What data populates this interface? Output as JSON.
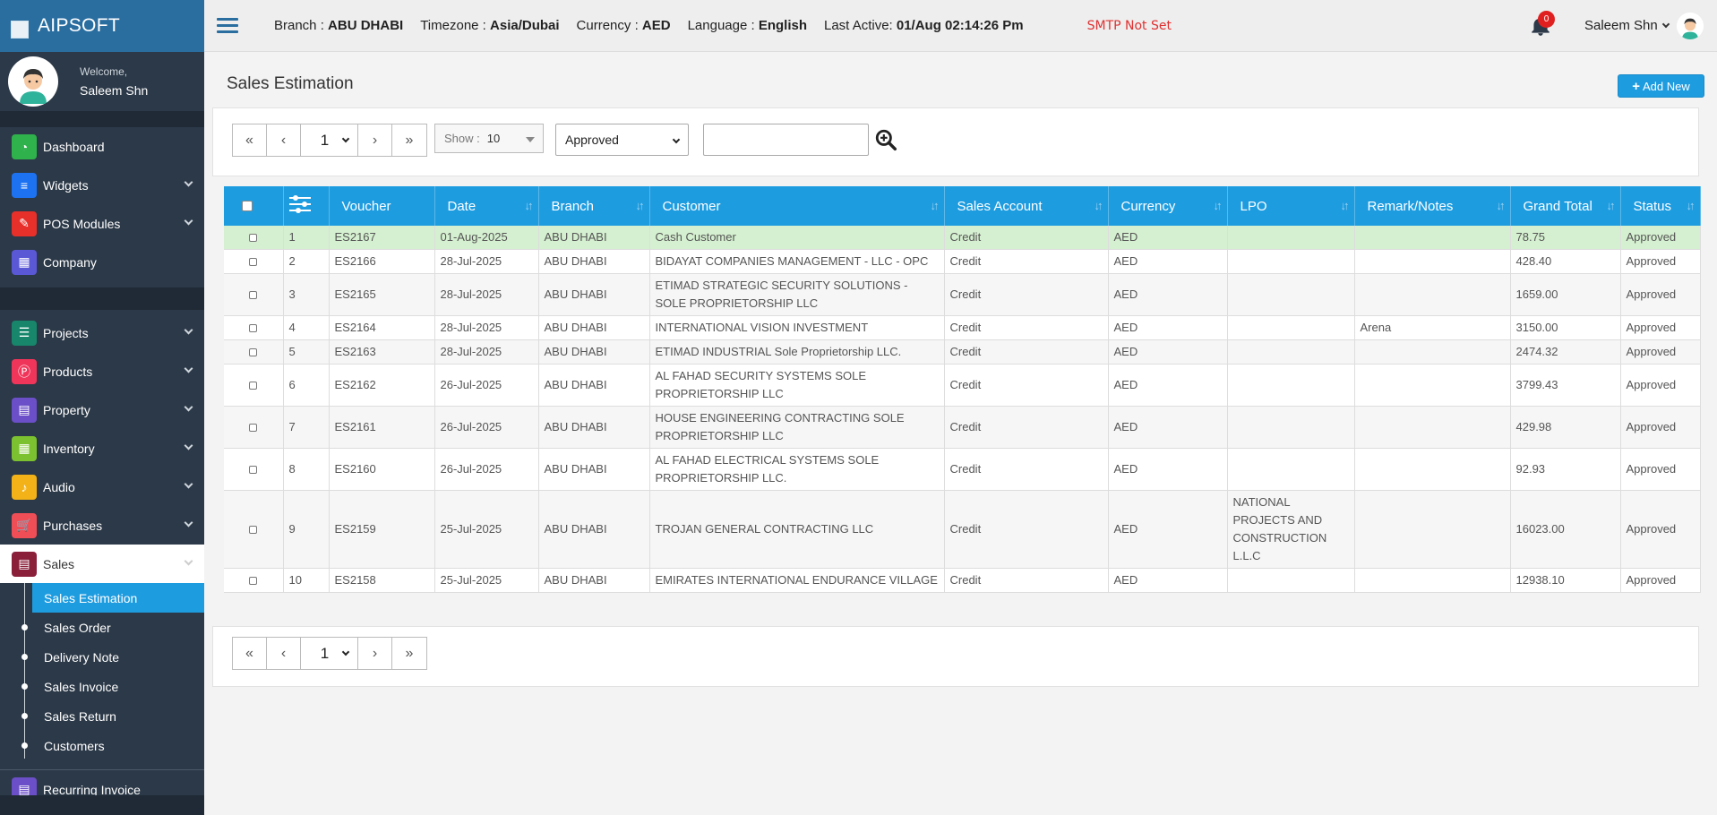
{
  "brand": {
    "name": "AIPSOFT"
  },
  "user": {
    "welcome": "Welcome,",
    "name": "Saleem Shn"
  },
  "sidebar": {
    "items_top": [
      {
        "label": "Dashboard",
        "icon": "dashboard-icon",
        "color": "#2fb14c",
        "glyph": "◔",
        "chevron": false
      },
      {
        "label": "Widgets",
        "icon": "sliders-icon",
        "color": "#1d72f2",
        "glyph": "≡",
        "chevron": true
      },
      {
        "label": "POS Modules",
        "icon": "edit-icon",
        "color": "#e8302a",
        "glyph": "✎",
        "chevron": true
      },
      {
        "label": "Company",
        "icon": "building-icon",
        "color": "#5b58d6",
        "glyph": "▦",
        "chevron": false
      }
    ],
    "items_mid": [
      {
        "label": "Projects",
        "icon": "server-icon",
        "color": "#17866b",
        "glyph": "☰",
        "chevron": true
      },
      {
        "label": "Products",
        "icon": "product-icon",
        "color": "#f0355a",
        "glyph": "Ⓟ",
        "chevron": true
      },
      {
        "label": "Property",
        "icon": "list-icon",
        "color": "#6b4fc8",
        "glyph": "▤",
        "chevron": true
      },
      {
        "label": "Inventory",
        "icon": "grid-icon",
        "color": "#7cc12f",
        "glyph": "▦",
        "chevron": true
      },
      {
        "label": "Audio",
        "icon": "mic-icon",
        "color": "#f3b218",
        "glyph": "♪",
        "chevron": true
      },
      {
        "label": "Purchases",
        "icon": "cart-icon",
        "color": "#f04e57",
        "glyph": "🛒",
        "chevron": true
      },
      {
        "label": "Sales",
        "icon": "sales-icon",
        "color": "#8a1f3a",
        "glyph": "▤",
        "chevron": true,
        "active": true
      }
    ],
    "submenu": [
      {
        "label": "Sales Estimation",
        "active": true
      },
      {
        "label": "Sales Order"
      },
      {
        "label": "Delivery Note"
      },
      {
        "label": "Sales Invoice"
      },
      {
        "label": "Sales Return"
      },
      {
        "label": "Customers"
      }
    ],
    "items_bottom": [
      {
        "label": "Recurring Invoice",
        "icon": "invoice-icon",
        "color": "#6b4fc8",
        "glyph": "▤",
        "chevron": false
      }
    ]
  },
  "topbar": {
    "branch_label": "Branch : ",
    "branch": "ABU DHABI",
    "timezone_label": "Timezone : ",
    "timezone": "Asia/Dubai",
    "currency_label": "Currency : ",
    "currency": "AED",
    "language_label": "Language : ",
    "language": "English",
    "last_active_label": "Last Active: ",
    "last_active": "01/Aug 02:14:26 Pm",
    "smtp": "SMTP Not Set",
    "notifications": "0",
    "user": "Saleem Shn"
  },
  "page": {
    "title": "Sales Estimation",
    "add_new": "Add New",
    "page_number": "1",
    "show_label": "Show :",
    "show_value": "10",
    "status_filter": "Approved",
    "search_placeholder": ""
  },
  "table": {
    "columns": [
      "Voucher",
      "Date",
      "Branch",
      "Customer",
      "Sales Account",
      "Currency",
      "LPO",
      "Remark/Notes",
      "Grand Total",
      "Status"
    ],
    "rows": [
      {
        "no": "1",
        "voucher": "ES2167",
        "date": "01-Aug-2025",
        "branch": "ABU DHABI",
        "customer": "Cash Customer",
        "account": "Credit",
        "currency": "AED",
        "lpo": "",
        "remark": "",
        "total": "78.75",
        "status": "Approved"
      },
      {
        "no": "2",
        "voucher": "ES2166",
        "date": "28-Jul-2025",
        "branch": "ABU DHABI",
        "customer": "BIDAYAT COMPANIES MANAGEMENT - LLC - OPC",
        "account": "Credit",
        "currency": "AED",
        "lpo": "",
        "remark": "",
        "total": "428.40",
        "status": "Approved"
      },
      {
        "no": "3",
        "voucher": "ES2165",
        "date": "28-Jul-2025",
        "branch": "ABU DHABI",
        "customer": "ETIMAD STRATEGIC SECURITY SOLUTIONS - SOLE PROPRIETORSHIP LLC",
        "account": "Credit",
        "currency": "AED",
        "lpo": "",
        "remark": "",
        "total": "1659.00",
        "status": "Approved"
      },
      {
        "no": "4",
        "voucher": "ES2164",
        "date": "28-Jul-2025",
        "branch": "ABU DHABI",
        "customer": "INTERNATIONAL VISION INVESTMENT",
        "account": "Credit",
        "currency": "AED",
        "lpo": "",
        "remark": "Arena",
        "total": "3150.00",
        "status": "Approved"
      },
      {
        "no": "5",
        "voucher": "ES2163",
        "date": "28-Jul-2025",
        "branch": "ABU DHABI",
        "customer": "ETIMAD INDUSTRIAL Sole Proprietorship LLC.",
        "account": "Credit",
        "currency": "AED",
        "lpo": "",
        "remark": "",
        "total": "2474.32",
        "status": "Approved"
      },
      {
        "no": "6",
        "voucher": "ES2162",
        "date": "26-Jul-2025",
        "branch": "ABU DHABI",
        "customer": "AL FAHAD SECURITY SYSTEMS SOLE PROPRIETORSHIP LLC",
        "account": "Credit",
        "currency": "AED",
        "lpo": "",
        "remark": "",
        "total": "3799.43",
        "status": "Approved"
      },
      {
        "no": "7",
        "voucher": "ES2161",
        "date": "26-Jul-2025",
        "branch": "ABU DHABI",
        "customer": "HOUSE ENGINEERING CONTRACTING SOLE PROPRIETORSHIP LLC",
        "account": "Credit",
        "currency": "AED",
        "lpo": "",
        "remark": "",
        "total": "429.98",
        "status": "Approved"
      },
      {
        "no": "8",
        "voucher": "ES2160",
        "date": "26-Jul-2025",
        "branch": "ABU DHABI",
        "customer": "AL FAHAD ELECTRICAL SYSTEMS SOLE PROPRIETORSHIP LLC.",
        "account": "Credit",
        "currency": "AED",
        "lpo": "",
        "remark": "",
        "total": "92.93",
        "status": "Approved"
      },
      {
        "no": "9",
        "voucher": "ES2159",
        "date": "25-Jul-2025",
        "branch": "ABU DHABI",
        "customer": "TROJAN GENERAL CONTRACTING LLC",
        "account": "Credit",
        "currency": "AED",
        "lpo": "NATIONAL PROJECTS AND CONSTRUCTION L.L.C",
        "remark": "",
        "total": "16023.00",
        "status": "Approved"
      },
      {
        "no": "10",
        "voucher": "ES2158",
        "date": "25-Jul-2025",
        "branch": "ABU DHABI",
        "customer": "EMIRATES INTERNATIONAL ENDURANCE VILLAGE",
        "account": "Credit",
        "currency": "AED",
        "lpo": "",
        "remark": "",
        "total": "12938.10",
        "status": "Approved"
      }
    ]
  },
  "colors": {
    "accent": "#1e9ce0",
    "sidebar": "#2c3948",
    "highlight_row": "#d5f0d0",
    "smtp": "#e03131"
  }
}
